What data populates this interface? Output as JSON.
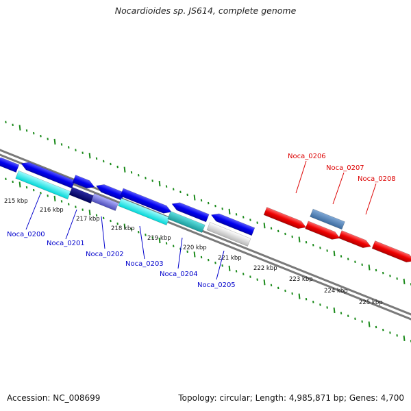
{
  "title": "Nocardioides sp. JS614, complete genome",
  "footer": {
    "accession": "Accession: NC_008699",
    "summary": "Topology: circular; Length: 4,985,871 bp; Genes: 4,700"
  },
  "ruler": {
    "labels": [
      "215 kbp",
      "216 kbp",
      "217 kbp",
      "218 kbp",
      "219 kbp",
      "220 kbp",
      "221 kbp",
      "222 kbp",
      "223 kbp",
      "224 kbp",
      "225 kbp"
    ]
  },
  "genes": [
    {
      "id": "Noca_0200",
      "color": "#00e5e5",
      "labeled": true
    },
    {
      "id": "Noca_0201",
      "color": "#00007a",
      "labeled": true
    },
    {
      "id": "Noca_0202",
      "color": "#6b6bd6",
      "labeled": true
    },
    {
      "id": "Noca_0203",
      "color": "#00e5e5",
      "labeled": true
    },
    {
      "id": "Noca_0204",
      "color": "#20b0b0",
      "labeled": true
    },
    {
      "id": "Noca_0205",
      "color": "#c8c8c8",
      "labeled": true
    },
    {
      "id": "Noca_0206",
      "color": "#ee0000",
      "labeled": true
    },
    {
      "id": "Noca_0207",
      "color": "#4d7fb3",
      "labeled": true
    },
    {
      "id": "Noca_0208",
      "color": "#ee0000",
      "labeled": true
    }
  ],
  "colors": {
    "forward_blue": "#0000ee",
    "backbone": "#7a7a7a",
    "tick_green": "#1a8a1a",
    "label_blue": "#0000cc",
    "label_red": "#dd0000"
  }
}
